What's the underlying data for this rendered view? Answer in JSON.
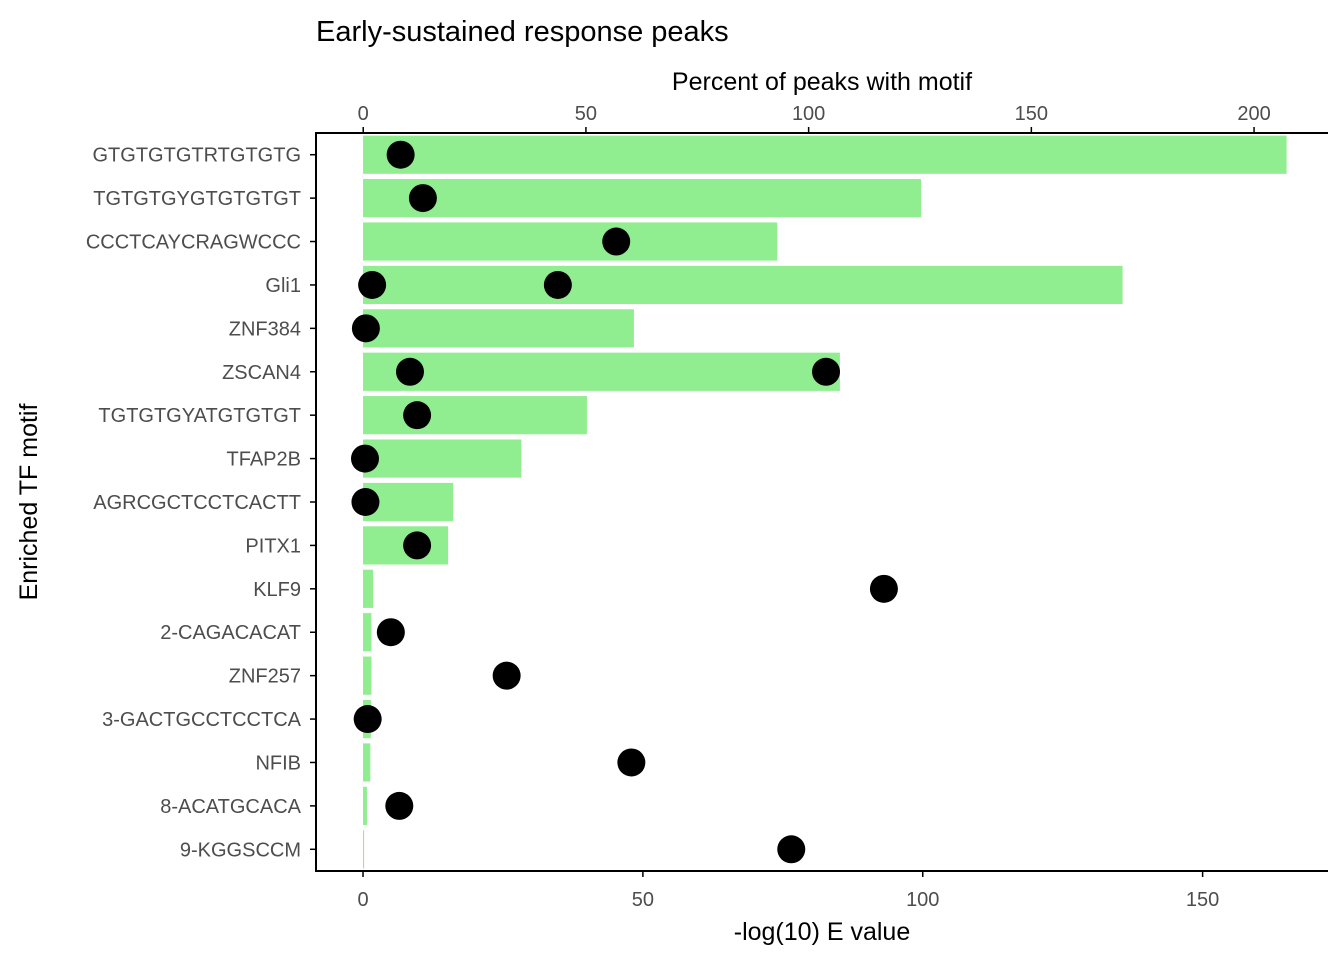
{
  "chart_data": {
    "type": "bar",
    "title": "Early-sustained response peaks",
    "xlabel_bottom": "-log(10) E value",
    "xlabel_top": "Percent of peaks with motif",
    "ylabel": "Enriched TF motif",
    "categories": [
      "GTGTGTGTRTGTGTG",
      "TGTGTGYGTGTGTGT",
      "CCCTCAYCRAGWCCC",
      "Gli1",
      "ZNF384",
      "ZSCAN4",
      "TGTGTGYATGTGTGT",
      "TFAP2B",
      "AGRCGCTCCTCACTT",
      "PITX1",
      "KLF9",
      "2-CAGACACAT",
      "ZNF257",
      "3-GACTGCCTCCTCA",
      "NFIB",
      "8-ACATGCACA",
      "9-KGGSCCM"
    ],
    "bar_axis": "bottom",
    "bar_series": {
      "values": [
        165,
        99.7,
        74,
        135.7,
        48.4,
        85.2,
        40,
        28.3,
        16.1,
        15.2,
        1.8,
        1.5,
        1.5,
        1.4,
        1.3,
        0.7,
        0.2
      ]
    },
    "point_axis": "top",
    "point_series": [
      {
        "category": "GTGTGTGTRTGTGTG",
        "value": 8.4
      },
      {
        "category": "TGTGTGYGTGTGTGT",
        "value": 13.4
      },
      {
        "category": "CCCTCAYCRAGWCCC",
        "value": 56.8
      },
      {
        "category": "Gli1",
        "value": 2.0
      },
      {
        "category": "Gli1",
        "value": 43.7
      },
      {
        "category": "ZNF384",
        "value": 0.6
      },
      {
        "category": "ZSCAN4",
        "value": 10.5
      },
      {
        "category": "ZSCAN4",
        "value": 103.9
      },
      {
        "category": "TGTGTGYATGTGTGT",
        "value": 12.1
      },
      {
        "category": "TFAP2B",
        "value": 0.4
      },
      {
        "category": "AGRCGCTCCTCACTT",
        "value": 0.5
      },
      {
        "category": "PITX1",
        "value": 12.1
      },
      {
        "category": "KLF9",
        "value": 116.9
      },
      {
        "category": "2-CAGACACAT",
        "value": 6.2
      },
      {
        "category": "ZNF257",
        "value": 32.2
      },
      {
        "category": "3-GACTGCCTCCTCA",
        "value": 1.0
      },
      {
        "category": "NFIB",
        "value": 60.2
      },
      {
        "category": "8-ACATGCACA",
        "value": 8.1
      },
      {
        "category": "9-KGGSCCM",
        "value": 96.1
      }
    ],
    "bottom_axis": {
      "range": [
        -8.4,
        172.4
      ],
      "ticks": [
        0,
        50,
        100,
        150
      ]
    },
    "top_axis": {
      "range": [
        -10.6,
        216.6
      ],
      "ticks": [
        0,
        50,
        100,
        150,
        200
      ]
    },
    "grid": false,
    "colors": {
      "bar": "#90ee90",
      "point": "#000000",
      "axis": "#000000",
      "tick_label": "#4d4d4d"
    }
  }
}
